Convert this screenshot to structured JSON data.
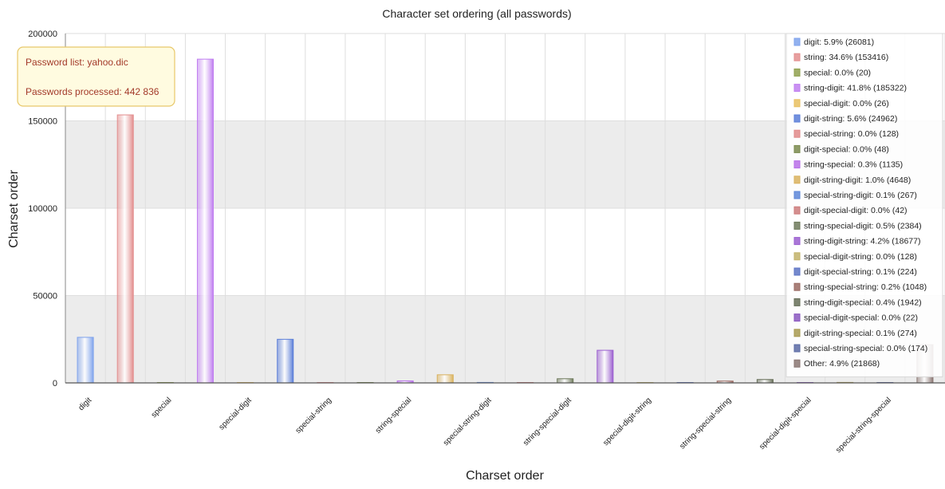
{
  "chart_data": {
    "type": "bar",
    "title": "Character set ordering (all passwords)",
    "xlabel": "Charset order",
    "ylabel": "Charset order",
    "ylim": [
      0,
      200000
    ],
    "yticks": [
      0,
      50000,
      100000,
      150000,
      200000
    ],
    "grid": true,
    "legend_position": "top-right",
    "categories": [
      "digit",
      "string",
      "special",
      "string-digit",
      "special-digit",
      "digit-string",
      "special-string",
      "digit-special",
      "string-special",
      "digit-string-digit",
      "special-string-digit",
      "digit-special-digit",
      "string-special-digit",
      "string-digit-string",
      "special-digit-string",
      "digit-special-string",
      "string-special-string",
      "string-digit-special",
      "special-digit-special",
      "digit-string-special",
      "special-string-special",
      "Other"
    ],
    "xtick_labels": [
      "digit",
      "special",
      "special-digit",
      "special-string",
      "string-special",
      "special-string-digit",
      "string-special-digit",
      "special-digit-string",
      "string-special-string",
      "special-digit-special",
      "special-string-special"
    ],
    "values": [
      26081,
      153416,
      20,
      185322,
      26,
      24962,
      128,
      48,
      1135,
      4648,
      267,
      42,
      2384,
      18677,
      128,
      224,
      1048,
      1942,
      22,
      274,
      174,
      21868
    ],
    "colors": [
      "#7fa3ec",
      "#e38e8e",
      "#8fa04e",
      "#c07ef0",
      "#e8c060",
      "#5b7ed8",
      "#e08a8a",
      "#7a8a4e",
      "#b870e8",
      "#d9b25e",
      "#5c86d8",
      "#cc7b7b",
      "#6f7a5c",
      "#9b5fd0",
      "#c2b26a",
      "#5d74c4",
      "#9a6a62",
      "#666e58",
      "#8a58c0",
      "#a89a50",
      "#5a6aa4",
      "#8a7672"
    ],
    "legend": [
      "digit: 5.9% (26081)",
      "string: 34.6% (153416)",
      "special: 0.0% (20)",
      "string-digit: 41.8% (185322)",
      "special-digit: 0.0% (26)",
      "digit-string: 5.6% (24962)",
      "special-string: 0.0% (128)",
      "digit-special: 0.0% (48)",
      "string-special: 0.3% (1135)",
      "digit-string-digit: 1.0% (4648)",
      "special-string-digit: 0.1% (267)",
      "digit-special-digit: 0.0% (42)",
      "string-special-digit: 0.5% (2384)",
      "string-digit-string: 4.2% (18677)",
      "special-digit-string: 0.0% (128)",
      "digit-special-string: 0.1% (224)",
      "string-special-string: 0.2% (1048)",
      "string-digit-special: 0.4% (1942)",
      "special-digit-special: 0.0% (22)",
      "digit-string-special: 0.1% (274)",
      "special-string-special: 0.0% (174)",
      "Other: 4.9% (21868)"
    ],
    "annotation": {
      "line1": "Password list: yahoo.dic",
      "line2": "Passwords processed: 442 836"
    }
  }
}
